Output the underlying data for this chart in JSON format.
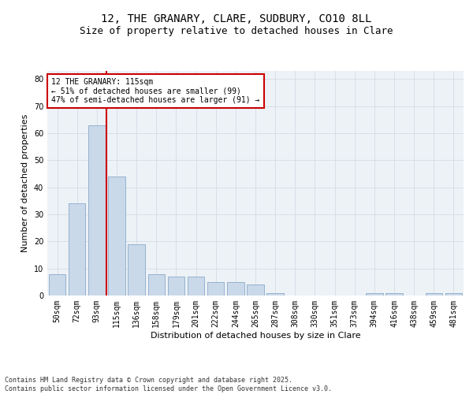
{
  "title1": "12, THE GRANARY, CLARE, SUDBURY, CO10 8LL",
  "title2": "Size of property relative to detached houses in Clare",
  "xlabel": "Distribution of detached houses by size in Clare",
  "ylabel": "Number of detached properties",
  "categories": [
    "50sqm",
    "72sqm",
    "93sqm",
    "115sqm",
    "136sqm",
    "158sqm",
    "179sqm",
    "201sqm",
    "222sqm",
    "244sqm",
    "265sqm",
    "287sqm",
    "308sqm",
    "330sqm",
    "351sqm",
    "373sqm",
    "394sqm",
    "416sqm",
    "438sqm",
    "459sqm",
    "481sqm"
  ],
  "values": [
    8,
    34,
    63,
    44,
    19,
    8,
    7,
    7,
    5,
    5,
    4,
    1,
    0,
    0,
    0,
    0,
    1,
    1,
    0,
    1,
    1
  ],
  "bar_color": "#c9d9ea",
  "bar_edge_color": "#8aaac8",
  "vline_x_index": 3,
  "vline_color": "#cc0000",
  "annotation_text": "12 THE GRANARY: 115sqm\n← 51% of detached houses are smaller (99)\n47% of semi-detached houses are larger (91) →",
  "annotation_box_color": "#ffffff",
  "annotation_box_edge": "#cc0000",
  "ylim": [
    0,
    83
  ],
  "yticks": [
    0,
    10,
    20,
    30,
    40,
    50,
    60,
    70,
    80
  ],
  "grid_color": "#d0d8e0",
  "bg_color": "#edf2f7",
  "footer_text": "Contains HM Land Registry data © Crown copyright and database right 2025.\nContains public sector information licensed under the Open Government Licence v3.0.",
  "title_fontsize": 10,
  "subtitle_fontsize": 9,
  "axis_label_fontsize": 8,
  "tick_fontsize": 7,
  "annotation_fontsize": 7,
  "footer_fontsize": 6
}
